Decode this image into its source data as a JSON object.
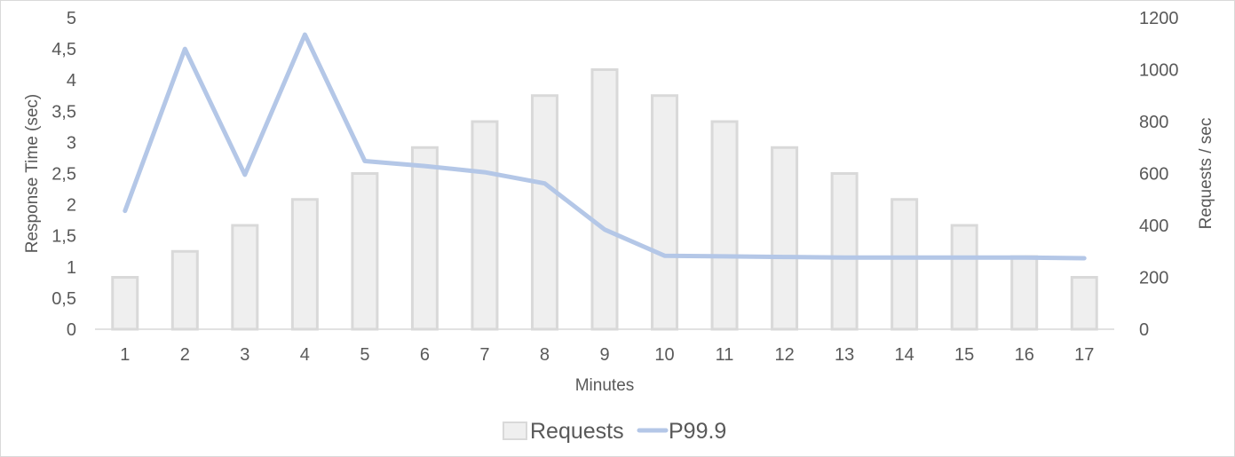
{
  "chart_data": {
    "type": "bar",
    "categories": [
      "1",
      "2",
      "3",
      "4",
      "5",
      "6",
      "7",
      "8",
      "9",
      "10",
      "11",
      "12",
      "13",
      "14",
      "15",
      "16",
      "17"
    ],
    "series": [
      {
        "name": "Requests",
        "type": "bar",
        "axis": "right",
        "values": [
          200,
          300,
          400,
          500,
          600,
          700,
          800,
          900,
          1000,
          900,
          800,
          700,
          600,
          500,
          400,
          280,
          200
        ],
        "color": "#efefef",
        "stroke": "#d9d9d9"
      },
      {
        "name": "P99.9",
        "type": "line",
        "axis": "left",
        "values": [
          1.9,
          4.5,
          2.48,
          4.73,
          2.7,
          2.62,
          2.52,
          2.34,
          1.6,
          1.18,
          1.17,
          1.16,
          1.15,
          1.15,
          1.15,
          1.15,
          1.14
        ],
        "color": "#b4c7e7"
      }
    ],
    "xlabel": "Minutes",
    "ylabel": "Response Time (sec)",
    "y2label": "Requests / sec",
    "ylim": [
      0,
      5
    ],
    "y2lim": [
      0,
      1200
    ],
    "yticks": [
      "0",
      "0,5",
      "1",
      "1,5",
      "2",
      "2,5",
      "3",
      "3,5",
      "4",
      "4,5",
      "5"
    ],
    "y2ticks": [
      "0",
      "200",
      "400",
      "600",
      "800",
      "1000",
      "1200"
    ],
    "grid": false,
    "legend": "bottom-center"
  }
}
